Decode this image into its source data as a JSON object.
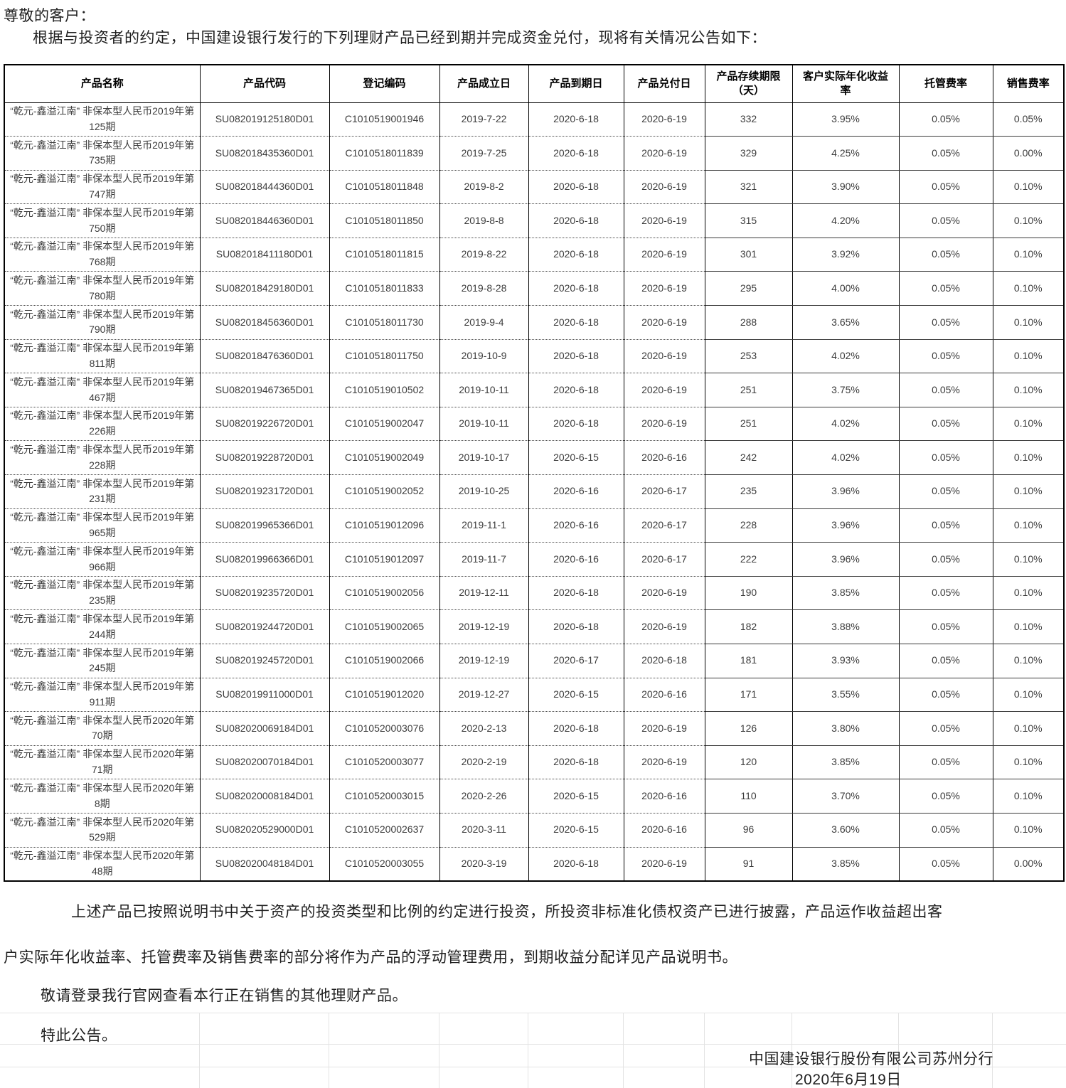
{
  "page": {
    "salutation": "尊敬的客户：",
    "intro": "根据与投资者的约定，中国建设银行发行的下列理财产品已经到期并完成资金兑付，现将有关情况公告如下："
  },
  "table": {
    "headers": [
      "产品名称",
      "产品代码",
      "登记编码",
      "产品成立日",
      "产品到期日",
      "产品兑付日",
      "产品存续期限\n（天）",
      "客户实际年化收益\n率",
      "托管费率",
      "销售费率"
    ],
    "rows": [
      [
        "“乾元-鑫溢江南” 非保本型人民币2019年第125期",
        "SU082019125180D01",
        "C1010519001946",
        "2019-7-22",
        "2020-6-18",
        "2020-6-19",
        "332",
        "3.95%",
        "0.05%",
        "0.05%"
      ],
      [
        "“乾元-鑫溢江南” 非保本型人民币2019年第735期",
        "SU082018435360D01",
        "C1010518011839",
        "2019-7-25",
        "2020-6-18",
        "2020-6-19",
        "329",
        "4.25%",
        "0.05%",
        "0.00%"
      ],
      [
        "“乾元-鑫溢江南” 非保本型人民币2019年第747期",
        "SU082018444360D01",
        "C1010518011848",
        "2019-8-2",
        "2020-6-18",
        "2020-6-19",
        "321",
        "3.90%",
        "0.05%",
        "0.10%"
      ],
      [
        "“乾元-鑫溢江南” 非保本型人民币2019年第750期",
        "SU082018446360D01",
        "C1010518011850",
        "2019-8-8",
        "2020-6-18",
        "2020-6-19",
        "315",
        "4.20%",
        "0.05%",
        "0.10%"
      ],
      [
        "“乾元-鑫溢江南” 非保本型人民币2019年第768期",
        "SU082018411180D01",
        "C1010518011815",
        "2019-8-22",
        "2020-6-18",
        "2020-6-19",
        "301",
        "3.92%",
        "0.05%",
        "0.10%"
      ],
      [
        "“乾元-鑫溢江南” 非保本型人民币2019年第780期",
        "SU082018429180D01",
        "C1010518011833",
        "2019-8-28",
        "2020-6-18",
        "2020-6-19",
        "295",
        "4.00%",
        "0.05%",
        "0.10%"
      ],
      [
        "“乾元-鑫溢江南” 非保本型人民币2019年第790期",
        "SU082018456360D01",
        "C1010518011730",
        "2019-9-4",
        "2020-6-18",
        "2020-6-19",
        "288",
        "3.65%",
        "0.05%",
        "0.10%"
      ],
      [
        "“乾元-鑫溢江南” 非保本型人民币2019年第811期",
        "SU082018476360D01",
        "C1010518011750",
        "2019-10-9",
        "2020-6-18",
        "2020-6-19",
        "253",
        "4.02%",
        "0.05%",
        "0.10%"
      ],
      [
        "“乾元-鑫溢江南” 非保本型人民币2019年第467期",
        "SU082019467365D01",
        "C1010519010502",
        "2019-10-11",
        "2020-6-18",
        "2020-6-19",
        "251",
        "3.75%",
        "0.05%",
        "0.10%"
      ],
      [
        "“乾元-鑫溢江南” 非保本型人民币2019年第226期",
        "SU082019226720D01",
        "C1010519002047",
        "2019-10-11",
        "2020-6-18",
        "2020-6-19",
        "251",
        "4.02%",
        "0.05%",
        "0.10%"
      ],
      [
        "“乾元-鑫溢江南” 非保本型人民币2019年第228期",
        "SU082019228720D01",
        "C1010519002049",
        "2019-10-17",
        "2020-6-15",
        "2020-6-16",
        "242",
        "4.02%",
        "0.05%",
        "0.10%"
      ],
      [
        "“乾元-鑫溢江南” 非保本型人民币2019年第231期",
        "SU082019231720D01",
        "C1010519002052",
        "2019-10-25",
        "2020-6-16",
        "2020-6-17",
        "235",
        "3.96%",
        "0.05%",
        "0.10%"
      ],
      [
        "“乾元-鑫溢江南” 非保本型人民币2019年第965期",
        "SU082019965366D01",
        "C1010519012096",
        "2019-11-1",
        "2020-6-16",
        "2020-6-17",
        "228",
        "3.96%",
        "0.05%",
        "0.10%"
      ],
      [
        "“乾元-鑫溢江南” 非保本型人民币2019年第966期",
        "SU082019966366D01",
        "C1010519012097",
        "2019-11-7",
        "2020-6-16",
        "2020-6-17",
        "222",
        "3.96%",
        "0.05%",
        "0.10%"
      ],
      [
        "“乾元-鑫溢江南” 非保本型人民币2019年第235期",
        "SU082019235720D01",
        "C1010519002056",
        "2019-12-11",
        "2020-6-18",
        "2020-6-19",
        "190",
        "3.85%",
        "0.05%",
        "0.10%"
      ],
      [
        "“乾元-鑫溢江南” 非保本型人民币2019年第244期",
        "SU082019244720D01",
        "C1010519002065",
        "2019-12-19",
        "2020-6-18",
        "2020-6-19",
        "182",
        "3.88%",
        "0.05%",
        "0.10%"
      ],
      [
        "“乾元-鑫溢江南” 非保本型人民币2019年第245期",
        "SU082019245720D01",
        "C1010519002066",
        "2019-12-19",
        "2020-6-17",
        "2020-6-18",
        "181",
        "3.93%",
        "0.05%",
        "0.10%"
      ],
      [
        "“乾元-鑫溢江南” 非保本型人民币2019年第911期",
        "SU082019911000D01",
        "C1010519012020",
        "2019-12-27",
        "2020-6-15",
        "2020-6-16",
        "171",
        "3.55%",
        "0.05%",
        "0.10%"
      ],
      [
        "“乾元-鑫溢江南” 非保本型人民币2020年第70期",
        "SU082020069184D01",
        "C1010520003076",
        "2020-2-13",
        "2020-6-18",
        "2020-6-19",
        "126",
        "3.80%",
        "0.05%",
        "0.10%"
      ],
      [
        "“乾元-鑫溢江南” 非保本型人民币2020年第71期",
        "SU082020070184D01",
        "C1010520003077",
        "2020-2-19",
        "2020-6-18",
        "2020-6-19",
        "120",
        "3.85%",
        "0.05%",
        "0.10%"
      ],
      [
        "“乾元-鑫溢江南” 非保本型人民币2020年第8期",
        "SU082020008184D01",
        "C1010520003015",
        "2020-2-26",
        "2020-6-15",
        "2020-6-16",
        "110",
        "3.70%",
        "0.05%",
        "0.10%"
      ],
      [
        "“乾元-鑫溢江南” 非保本型人民币2020年第529期",
        "SU082020529000D01",
        "C1010520002637",
        "2020-3-11",
        "2020-6-15",
        "2020-6-16",
        "96",
        "3.60%",
        "0.05%",
        "0.10%"
      ],
      [
        "“乾元-鑫溢江南” 非保本型人民币2020年第48期",
        "SU082020048184D01",
        "C1010520003055",
        "2020-3-19",
        "2020-6-18",
        "2020-6-19",
        "91",
        "3.85%",
        "0.05%",
        "0.00%"
      ]
    ]
  },
  "footer": {
    "para_line1": "上述产品已按照说明书中关于资产的投资类型和比例的约定进行投资，所投资非标准化债权资产已进行披露，产品运作收益超出客",
    "para_line2": "户实际年化收益率、托管费率及销售费率的部分将作为产品的浮动管理费用，到期收益分配详见产品说明书。",
    "note_login": "敬请登录我行官网查看本行正在销售的其他理财产品。",
    "note_announce": "特此公告。",
    "issuer": "中国建设银行股份有限公司苏州分行",
    "date": "2020年6月19日"
  }
}
